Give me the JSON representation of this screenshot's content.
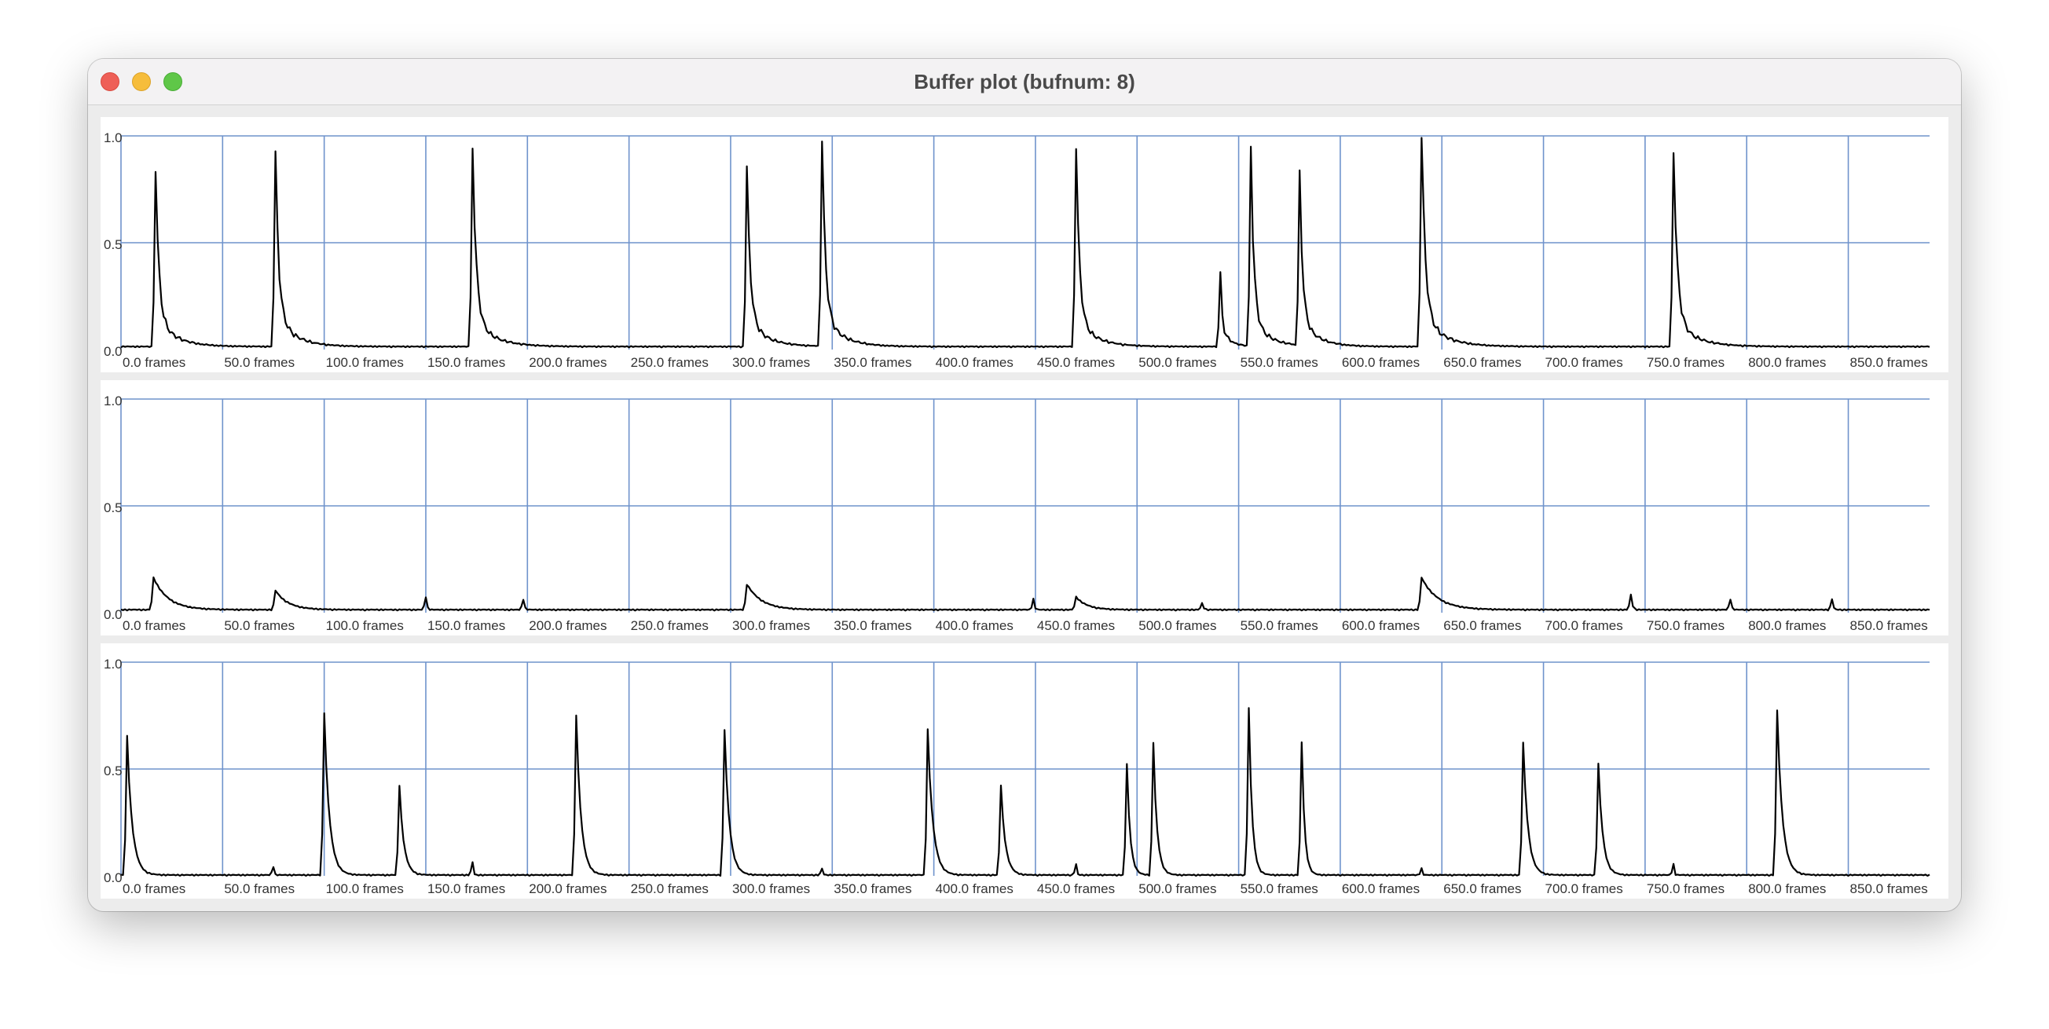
{
  "window": {
    "title": "Buffer plot (bufnum: 8)",
    "controls": {
      "close_icon": "close-icon",
      "minimize_icon": "minimize-icon",
      "zoom_icon": "zoom-icon",
      "colors": {
        "close": "#ee5f57",
        "minimize": "#f6bd3b",
        "zoom": "#5fc748"
      }
    }
  },
  "colors": {
    "grid": "#6f93cc",
    "waveform": "#000000",
    "plot_background": "#ffffff"
  },
  "chart_data": [
    {
      "type": "line",
      "channel": 1,
      "y_tick_labels": [
        "1.0",
        "0.5",
        "0.0"
      ],
      "ylim": [
        0,
        1
      ],
      "xlim": [
        0,
        890
      ],
      "x_tick_labels": [
        "0.0 frames",
        "50.0 frames",
        "100.0 frames",
        "150.0 frames",
        "200.0 frames",
        "250.0 frames",
        "300.0 frames",
        "350.0 frames",
        "400.0 frames",
        "450.0 frames",
        "500.0 frames",
        "550.0 frames",
        "600.0 frames",
        "650.0 frames",
        "700.0 frames",
        "750.0 frames",
        "800.0 frames",
        "850.0 frames"
      ],
      "grid": true,
      "baseline": 0.01,
      "events": [
        {
          "x": 17,
          "peak": 0.84,
          "decay": 9,
          "tail": 0.14
        },
        {
          "x": 76,
          "peak": 0.9,
          "decay": 9,
          "tail": 0.15
        },
        {
          "x": 173,
          "peak": 0.93,
          "decay": 10,
          "tail": 0.13
        },
        {
          "x": 308,
          "peak": 0.84,
          "decay": 9,
          "tail": 0.13
        },
        {
          "x": 345,
          "peak": 0.97,
          "decay": 9,
          "tail": 0.15
        },
        {
          "x": 470,
          "peak": 0.95,
          "decay": 9,
          "tail": 0.13
        },
        {
          "x": 541,
          "peak": 0.34,
          "decay": 4,
          "tail": 0.1
        },
        {
          "x": 556,
          "peak": 0.93,
          "decay": 8,
          "tail": 0.14
        },
        {
          "x": 580,
          "peak": 0.8,
          "decay": 8,
          "tail": 0.13
        },
        {
          "x": 640,
          "peak": 1.0,
          "decay": 10,
          "tail": 0.15
        },
        {
          "x": 764,
          "peak": 0.92,
          "decay": 10,
          "tail": 0.13
        }
      ]
    },
    {
      "type": "line",
      "channel": 2,
      "y_tick_labels": [
        "1.0",
        "0.5",
        "0.0"
      ],
      "ylim": [
        0,
        1
      ],
      "xlim": [
        0,
        890
      ],
      "x_tick_labels": [
        "0.0 frames",
        "50.0 frames",
        "100.0 frames",
        "150.0 frames",
        "200.0 frames",
        "250.0 frames",
        "300.0 frames",
        "350.0 frames",
        "400.0 frames",
        "450.0 frames",
        "500.0 frames",
        "550.0 frames",
        "600.0 frames",
        "650.0 frames",
        "700.0 frames",
        "750.0 frames",
        "800.0 frames",
        "850.0 frames"
      ],
      "grid": true,
      "baseline": 0.01,
      "events": [
        {
          "x": 16,
          "peak": 0.15,
          "decay": 40,
          "tail": 0.0
        },
        {
          "x": 76,
          "peak": 0.09,
          "decay": 35,
          "tail": 0.0
        },
        {
          "x": 150,
          "peak": 0.06,
          "decay": 3,
          "tail": 0.0
        },
        {
          "x": 198,
          "peak": 0.05,
          "decay": 3,
          "tail": 0.0
        },
        {
          "x": 308,
          "peak": 0.12,
          "decay": 40,
          "tail": 0.0
        },
        {
          "x": 449,
          "peak": 0.05,
          "decay": 3,
          "tail": 0.0
        },
        {
          "x": 470,
          "peak": 0.06,
          "decay": 30,
          "tail": 0.0
        },
        {
          "x": 532,
          "peak": 0.03,
          "decay": 4,
          "tail": 0.0
        },
        {
          "x": 640,
          "peak": 0.15,
          "decay": 45,
          "tail": 0.0
        },
        {
          "x": 743,
          "peak": 0.07,
          "decay": 4,
          "tail": 0.0
        },
        {
          "x": 792,
          "peak": 0.05,
          "decay": 3,
          "tail": 0.0
        },
        {
          "x": 842,
          "peak": 0.05,
          "decay": 3,
          "tail": 0.0
        }
      ]
    },
    {
      "type": "line",
      "channel": 3,
      "y_tick_labels": [
        "1.0",
        "0.5",
        "0.0"
      ],
      "ylim": [
        0,
        1
      ],
      "xlim": [
        0,
        890
      ],
      "x_tick_labels": [
        "0.0 frames",
        "50.0 frames",
        "100.0 frames",
        "150.0 frames",
        "200.0 frames",
        "250.0 frames",
        "300.0 frames",
        "350.0 frames",
        "400.0 frames",
        "450.0 frames",
        "500.0 frames",
        "550.0 frames",
        "600.0 frames",
        "650.0 frames",
        "700.0 frames",
        "750.0 frames",
        "800.0 frames",
        "850.0 frames"
      ],
      "grid": true,
      "baseline": 0.0,
      "events": [
        {
          "x": 3,
          "peak": 0.65,
          "decay": 14,
          "tail": 0.0
        },
        {
          "x": 75,
          "peak": 0.04,
          "decay": 2,
          "tail": 0.0
        },
        {
          "x": 100,
          "peak": 0.76,
          "decay": 14,
          "tail": 0.0
        },
        {
          "x": 137,
          "peak": 0.42,
          "decay": 12,
          "tail": 0.0
        },
        {
          "x": 173,
          "peak": 0.06,
          "decay": 2,
          "tail": 0.0
        },
        {
          "x": 224,
          "peak": 0.75,
          "decay": 13,
          "tail": 0.0
        },
        {
          "x": 297,
          "peak": 0.68,
          "decay": 13,
          "tail": 0.0
        },
        {
          "x": 345,
          "peak": 0.03,
          "decay": 2,
          "tail": 0.0
        },
        {
          "x": 397,
          "peak": 0.68,
          "decay": 14,
          "tail": 0.0
        },
        {
          "x": 433,
          "peak": 0.42,
          "decay": 12,
          "tail": 0.0
        },
        {
          "x": 470,
          "peak": 0.05,
          "decay": 2,
          "tail": 0.0
        },
        {
          "x": 495,
          "peak": 0.52,
          "decay": 9,
          "tail": 0.0
        },
        {
          "x": 508,
          "peak": 0.62,
          "decay": 10,
          "tail": 0.0
        },
        {
          "x": 555,
          "peak": 0.78,
          "decay": 9,
          "tail": 0.0
        },
        {
          "x": 581,
          "peak": 0.62,
          "decay": 8,
          "tail": 0.0
        },
        {
          "x": 640,
          "peak": 0.03,
          "decay": 2,
          "tail": 0.0
        },
        {
          "x": 690,
          "peak": 0.62,
          "decay": 13,
          "tail": 0.0
        },
        {
          "x": 727,
          "peak": 0.52,
          "decay": 12,
          "tail": 0.0
        },
        {
          "x": 764,
          "peak": 0.05,
          "decay": 2,
          "tail": 0.0
        },
        {
          "x": 815,
          "peak": 0.77,
          "decay": 14,
          "tail": 0.0
        }
      ]
    }
  ]
}
